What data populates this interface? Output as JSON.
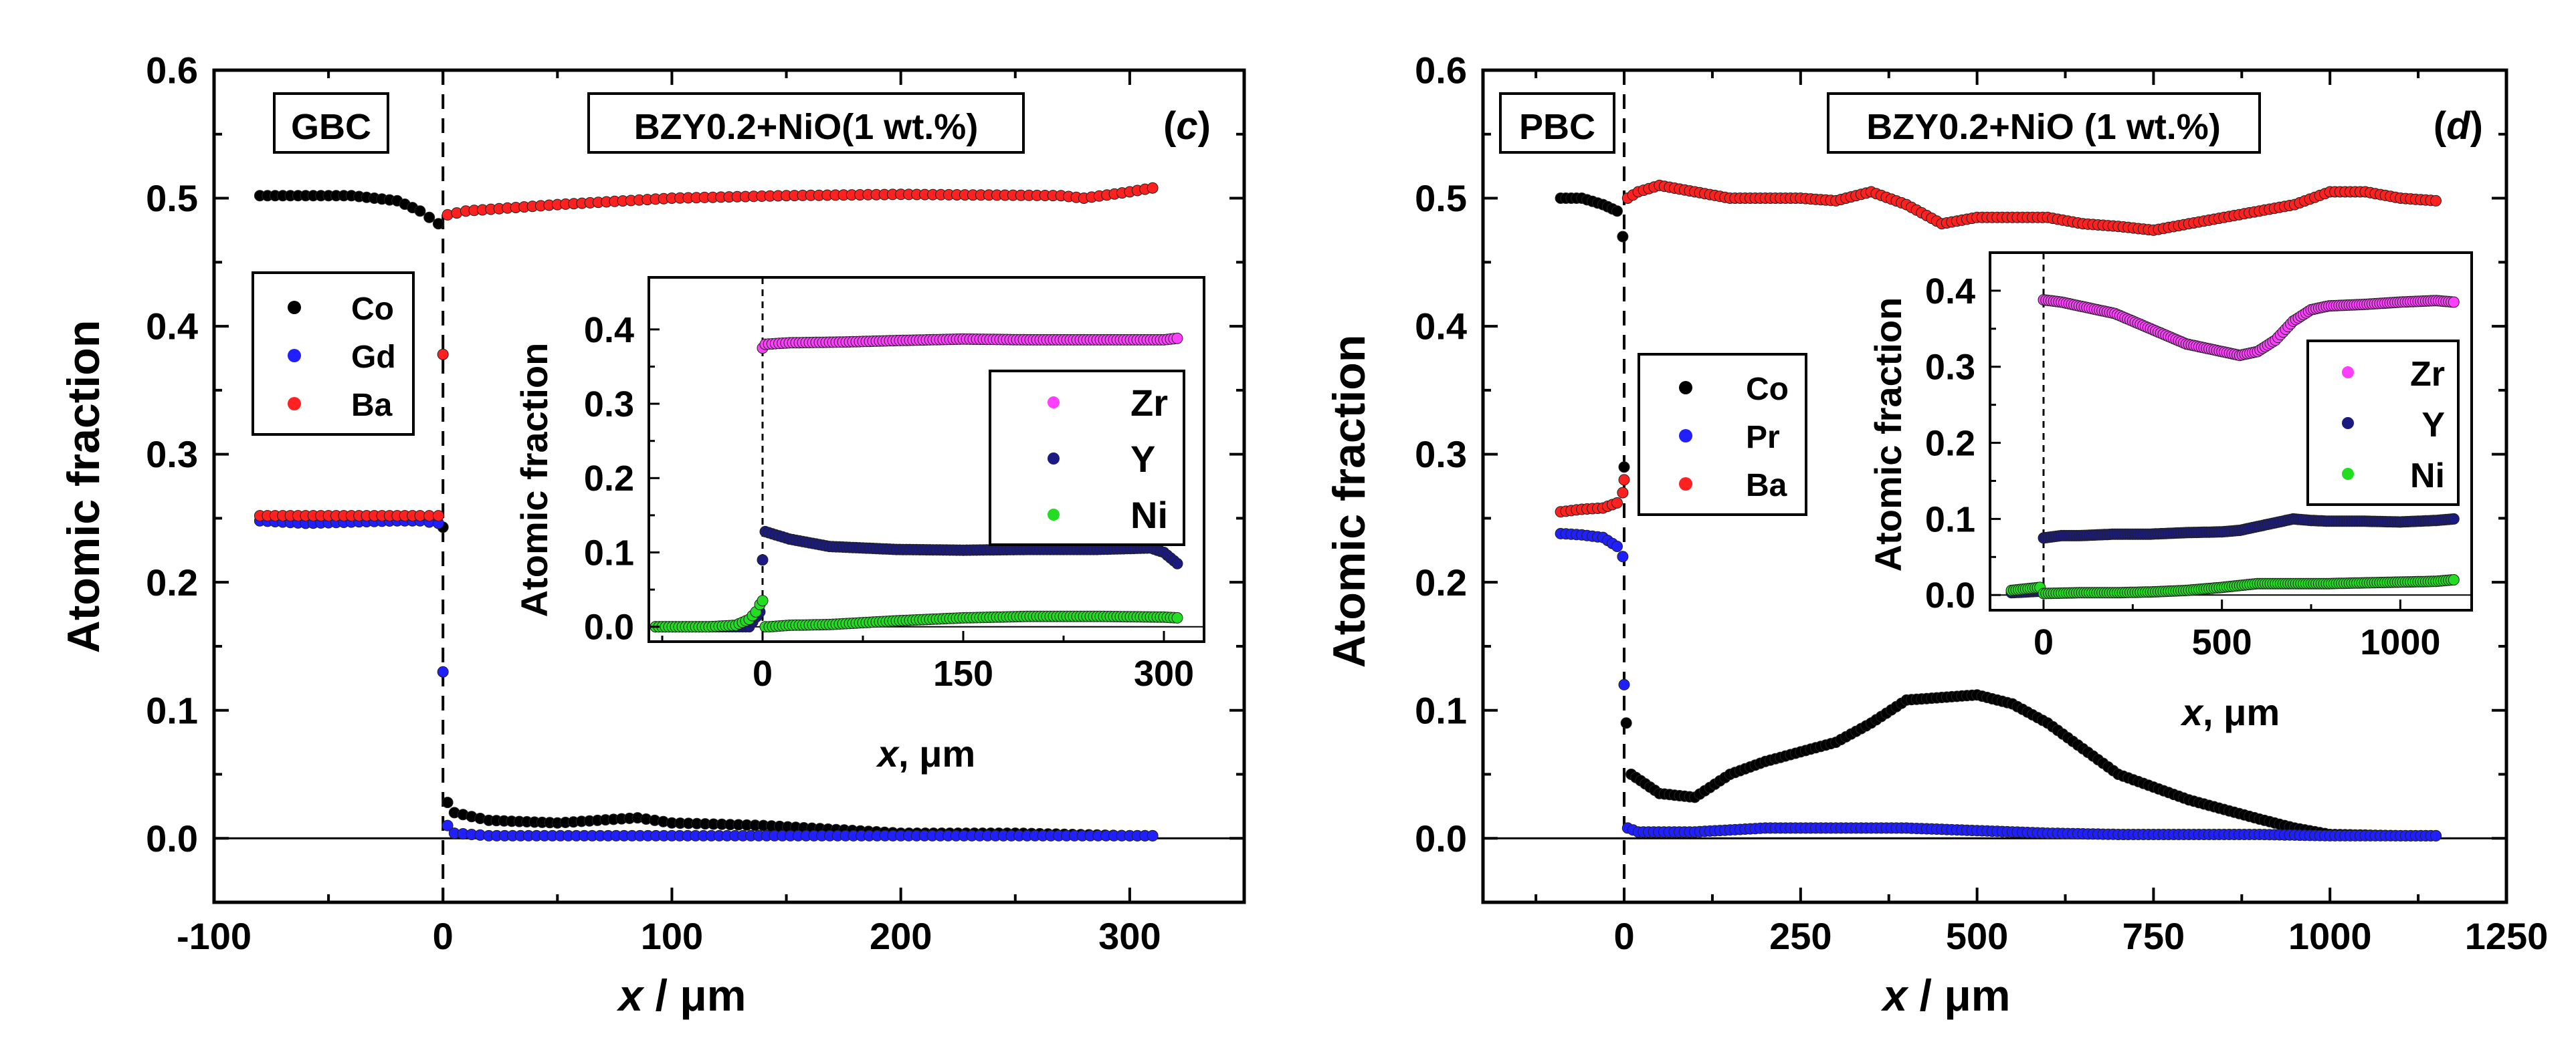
{
  "chart_data": [
    {
      "id": "c",
      "type": "scatter",
      "panel_label": "(c)",
      "panel_letter": "c",
      "xlabel_var": "x",
      "xlabel_unit": " / μm",
      "ylabel": "Atomic fraction",
      "xlim": [
        -100,
        350
      ],
      "ylim": [
        -0.05,
        0.6
      ],
      "xticks": [
        -100,
        0,
        100,
        200,
        300
      ],
      "xtick_labels": [
        "-100",
        "0",
        "100",
        "200",
        "300"
      ],
      "yticks": [
        0.0,
        0.1,
        0.2,
        0.3,
        0.4,
        0.5,
        0.6
      ],
      "ytick_labels": [
        "0.0",
        "0.1",
        "0.2",
        "0.3",
        "0.4",
        "0.5",
        "0.6"
      ],
      "interface_x": 0,
      "left_region_label": "GBC",
      "right_region_label": "BZY0.2+NiO(1 wt.%)",
      "legend": [
        "Co",
        "Gd",
        "Ba"
      ],
      "series": [
        {
          "name": "Co",
          "color": "#000000",
          "x": [
            -80,
            -60,
            -40,
            -20,
            -10,
            -2,
            0,
            2,
            5,
            20,
            50,
            85,
            100,
            140,
            200,
            250,
            300,
            310
          ],
          "y": [
            0.502,
            0.502,
            0.502,
            0.498,
            0.49,
            0.48,
            0.243,
            0.028,
            0.02,
            0.014,
            0.012,
            0.016,
            0.012,
            0.01,
            0.004,
            0.004,
            0.002,
            0.002
          ]
        },
        {
          "name": "Gd",
          "color": "#1f1fff",
          "x": [
            -80,
            -60,
            -40,
            -20,
            -10,
            -2,
            0,
            2,
            5,
            20,
            100,
            200,
            300,
            310
          ],
          "y": [
            0.248,
            0.246,
            0.247,
            0.248,
            0.248,
            0.246,
            0.13,
            0.01,
            0.004,
            0.002,
            0.002,
            0.002,
            0.002,
            0.002
          ]
        },
        {
          "name": "Ba",
          "color": "#ff2020",
          "x": [
            -80,
            -60,
            -40,
            -20,
            -10,
            -2,
            0,
            2,
            10,
            50,
            100,
            150,
            200,
            270,
            280,
            300,
            310
          ],
          "y": [
            0.252,
            0.252,
            0.252,
            0.252,
            0.252,
            0.252,
            0.378,
            0.487,
            0.49,
            0.495,
            0.5,
            0.502,
            0.503,
            0.502,
            0.5,
            0.505,
            0.508
          ]
        }
      ],
      "inset": {
        "ylabel": "Atomic fraction",
        "xlabel_var": "x",
        "xlabel_unit": ", μm",
        "xlim": [
          -85,
          330
        ],
        "ylim": [
          -0.02,
          0.47
        ],
        "xticks": [
          0,
          150,
          300
        ],
        "xtick_labels": [
          "0",
          "150",
          "300"
        ],
        "minor_xticks": [
          -75,
          75,
          225
        ],
        "yticks": [
          0.0,
          0.1,
          0.2,
          0.3,
          0.4
        ],
        "ytick_labels": [
          "0.0",
          "0.1",
          "0.2",
          "0.3",
          "0.4"
        ],
        "legend": [
          "Zr",
          "Y",
          "Ni"
        ],
        "series": [
          {
            "name": "Zr",
            "color": "#ff3fff",
            "x": [
              0,
              2,
              20,
              60,
              100,
              150,
              200,
              250,
              300,
              310
            ],
            "y": [
              0.375,
              0.38,
              0.382,
              0.383,
              0.385,
              0.387,
              0.386,
              0.386,
              0.386,
              0.388
            ]
          },
          {
            "name": "Y",
            "color": "#1a1a80",
            "x": [
              -80,
              -40,
              -10,
              -2,
              0,
              2,
              20,
              50,
              100,
              150,
              200,
              250,
              290,
              300,
              310
            ],
            "y": [
              0.0,
              0.0,
              0.0,
              0.02,
              0.09,
              0.128,
              0.118,
              0.108,
              0.104,
              0.103,
              0.104,
              0.104,
              0.106,
              0.1,
              0.085
            ]
          },
          {
            "name": "Ni",
            "color": "#22dd22",
            "x": [
              -80,
              -40,
              -20,
              -10,
              -5,
              -2,
              0,
              2,
              5,
              20,
              50,
              100,
              150,
              200,
              250,
              300,
              310
            ],
            "y": [
              0.0,
              0.0,
              0.002,
              0.01,
              0.02,
              0.03,
              0.035,
              0.0,
              0.0,
              0.002,
              0.003,
              0.008,
              0.012,
              0.014,
              0.014,
              0.013,
              0.012
            ]
          }
        ]
      }
    },
    {
      "id": "d",
      "type": "scatter",
      "panel_label": "(d)",
      "panel_letter": "d",
      "xlabel_var": "x",
      "xlabel_unit": " / μm",
      "ylabel": "Atomic fraction",
      "xlim": [
        -200,
        1250
      ],
      "ylim": [
        -0.05,
        0.6
      ],
      "xticks": [
        0,
        250,
        500,
        750,
        1000,
        1250
      ],
      "xtick_labels": [
        "0",
        "250",
        "500",
        "750",
        "1000",
        "1250"
      ],
      "yticks": [
        0.0,
        0.1,
        0.2,
        0.3,
        0.4,
        0.5,
        0.6
      ],
      "ytick_labels": [
        "0.0",
        "0.1",
        "0.2",
        "0.3",
        "0.4",
        "0.5",
        "0.6"
      ],
      "interface_x": 0,
      "left_region_label": "PBC",
      "right_region_label": "BZY0.2+NiO (1 wt.%)",
      "legend": [
        "Co",
        "Pr",
        "Ba"
      ],
      "series": [
        {
          "name": "Co",
          "color": "#000000",
          "x": [
            -90,
            -60,
            -30,
            -10,
            -2,
            0,
            3,
            10,
            50,
            100,
            150,
            200,
            300,
            350,
            400,
            450,
            500,
            550,
            600,
            700,
            800,
            900,
            950,
            1000,
            1100,
            1150
          ],
          "y": [
            0.5,
            0.5,
            0.495,
            0.49,
            0.47,
            0.29,
            0.09,
            0.05,
            0.035,
            0.032,
            0.05,
            0.06,
            0.075,
            0.09,
            0.108,
            0.11,
            0.112,
            0.105,
            0.09,
            0.05,
            0.03,
            0.015,
            0.008,
            0.003,
            0.002,
            0.002
          ]
        },
        {
          "name": "Pr",
          "color": "#1f1fff",
          "x": [
            -90,
            -60,
            -30,
            -10,
            -2,
            0,
            5,
            20,
            100,
            200,
            300,
            400,
            500,
            600,
            700,
            800,
            900,
            1000,
            1100,
            1150
          ],
          "y": [
            0.238,
            0.237,
            0.235,
            0.228,
            0.22,
            0.12,
            0.008,
            0.005,
            0.005,
            0.008,
            0.008,
            0.008,
            0.006,
            0.004,
            0.003,
            0.003,
            0.003,
            0.002,
            0.002,
            0.002
          ]
        },
        {
          "name": "Ba",
          "color": "#ff2020",
          "x": [
            -90,
            -60,
            -30,
            -10,
            -2,
            0,
            5,
            20,
            50,
            100,
            150,
            200,
            250,
            300,
            350,
            400,
            450,
            500,
            550,
            600,
            650,
            700,
            750,
            800,
            850,
            900,
            950,
            1000,
            1050,
            1100,
            1150
          ],
          "y": [
            0.255,
            0.257,
            0.258,
            0.262,
            0.27,
            0.28,
            0.5,
            0.505,
            0.51,
            0.505,
            0.5,
            0.5,
            0.5,
            0.498,
            0.505,
            0.495,
            0.48,
            0.485,
            0.485,
            0.485,
            0.48,
            0.478,
            0.475,
            0.48,
            0.485,
            0.49,
            0.495,
            0.505,
            0.505,
            0.5,
            0.498
          ]
        }
      ],
      "inset": {
        "ylabel": "Atomic fraction",
        "xlabel_var": "x",
        "xlabel_unit": ", μm",
        "xlim": [
          -150,
          1200
        ],
        "ylim": [
          -0.02,
          0.45
        ],
        "xticks": [
          0,
          500,
          1000
        ],
        "xtick_labels": [
          "0",
          "500",
          "1000"
        ],
        "minor_xticks": [
          250,
          750
        ],
        "yticks": [
          0.0,
          0.1,
          0.2,
          0.3,
          0.4
        ],
        "ytick_labels": [
          "0.0",
          "0.1",
          "0.2",
          "0.3",
          "0.4"
        ],
        "legend": [
          "Zr",
          "Y",
          "Ni"
        ],
        "series": [
          {
            "name": "Zr",
            "color": "#ff3fff",
            "x": [
              0,
              50,
              100,
              150,
              200,
              250,
              300,
              350,
              400,
              450,
              500,
              550,
              600,
              650,
              700,
              750,
              800,
              900,
              1000,
              1100,
              1150
            ],
            "y": [
              0.388,
              0.385,
              0.38,
              0.375,
              0.37,
              0.36,
              0.35,
              0.34,
              0.33,
              0.325,
              0.32,
              0.315,
              0.32,
              0.335,
              0.36,
              0.375,
              0.38,
              0.382,
              0.385,
              0.387,
              0.385
            ]
          },
          {
            "name": "Y",
            "color": "#1a1a80",
            "x": [
              -90,
              -50,
              -10,
              0,
              50,
              100,
              200,
              300,
              400,
              500,
              550,
              600,
              650,
              700,
              750,
              800,
              900,
              1000,
              1100,
              1150
            ],
            "y": [
              0.003,
              0.004,
              0.005,
              0.075,
              0.078,
              0.078,
              0.08,
              0.08,
              0.082,
              0.083,
              0.085,
              0.09,
              0.095,
              0.1,
              0.098,
              0.097,
              0.097,
              0.096,
              0.098,
              0.1
            ]
          },
          {
            "name": "Ni",
            "color": "#22dd22",
            "x": [
              -90,
              -50,
              -10,
              0,
              100,
              200,
              300,
              400,
              500,
              600,
              700,
              800,
              900,
              1000,
              1100,
              1150
            ],
            "y": [
              0.006,
              0.008,
              0.01,
              0.002,
              0.003,
              0.003,
              0.004,
              0.006,
              0.01,
              0.015,
              0.015,
              0.015,
              0.016,
              0.017,
              0.018,
              0.02
            ]
          }
        ]
      }
    }
  ]
}
